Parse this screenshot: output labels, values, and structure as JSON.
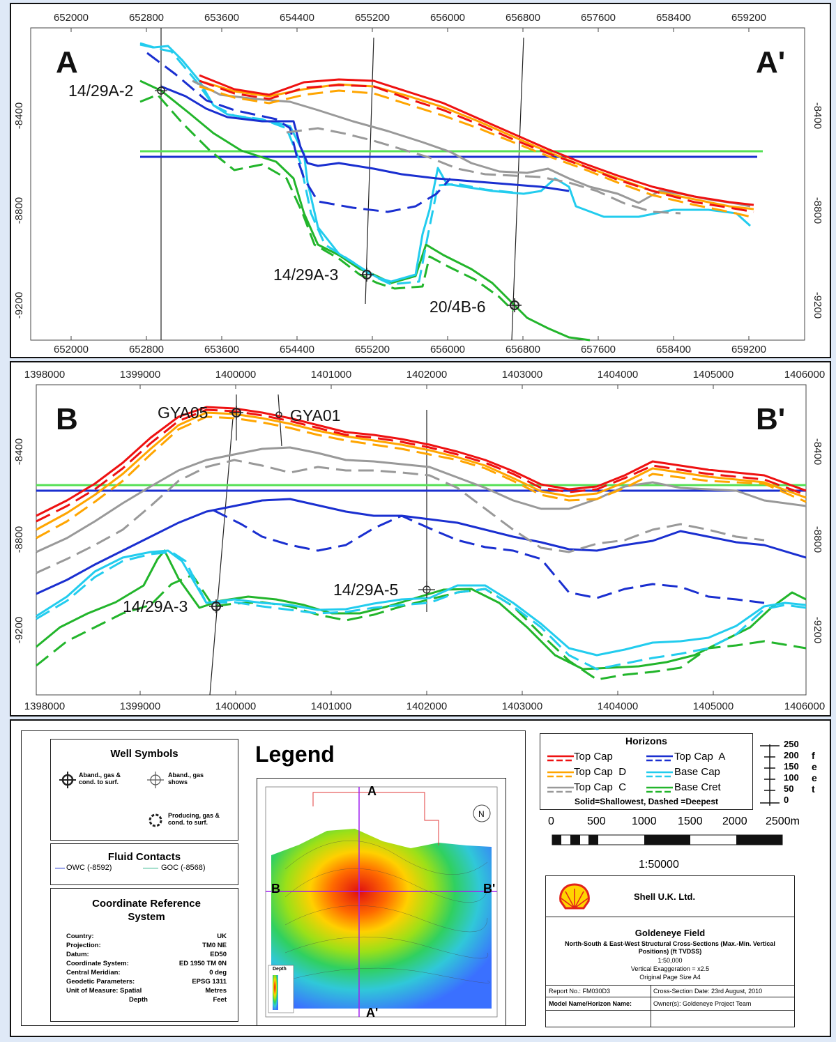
{
  "section_a": {
    "start_label": "A",
    "end_label": "A'",
    "x_ticks": [
      "652000",
      "652800",
      "653600",
      "654400",
      "655200",
      "656000",
      "656800",
      "657600",
      "658400",
      "659200"
    ],
    "y_ticks": [
      "-8400",
      "-8800",
      "-9200"
    ],
    "wells": [
      {
        "name": "14/29A-2"
      },
      {
        "name": "14/29A-3"
      },
      {
        "name": "20/4B-6"
      }
    ]
  },
  "section_b": {
    "start_label": "B",
    "end_label": "B'",
    "x_ticks": [
      "1398000",
      "1399000",
      "1400000",
      "1401000",
      "1402000",
      "1403000",
      "1404000",
      "1405000",
      "1406000"
    ],
    "y_ticks": [
      "-8400",
      "-8800",
      "-9200"
    ],
    "wells": [
      {
        "name": "GYA05"
      },
      {
        "name": "GYA01"
      },
      {
        "name": "14/29A-5"
      },
      {
        "name": "14/29A-3"
      }
    ]
  },
  "colors": {
    "top_cap": "#ee1111",
    "top_cap_d": "#ffa500",
    "top_cap_c": "#999999",
    "top_cap_a": "#1a2fd0",
    "base_cap": "#22ccee",
    "base_cret": "#22b52b",
    "goc": "#55e055",
    "owc": "#1a2fd0"
  },
  "legend": {
    "title": "Legend",
    "well_symbols": {
      "title": "Well Symbols",
      "items": [
        "Aband., gas & cond. to surf.",
        "Aband., gas shows",
        "Producing, gas & cond. to surf."
      ]
    },
    "fluid_contacts": {
      "title": "Fluid Contacts",
      "owc": "OWC (-8592)",
      "goc": "GOC (-8568)"
    },
    "crs": {
      "title": "Coordinate Reference System",
      "rows": [
        {
          "k": "Country:",
          "v": "UK"
        },
        {
          "k": "Projection:",
          "v": "TM0 NE"
        },
        {
          "k": "Datum:",
          "v": "ED50"
        },
        {
          "k": "Coordinate System:",
          "v": "ED 1950 TM 0N"
        },
        {
          "k": "Central Meridian:",
          "v": "0 deg"
        },
        {
          "k": "Geodetic Parameters:",
          "v": "EPSG 1311"
        },
        {
          "k": "Unit of Measure: Spatial",
          "v": "Metres"
        },
        {
          "k": "Depth",
          "v": "Feet"
        }
      ]
    },
    "horizons": {
      "title": "Horizons",
      "left": [
        "Top Cap",
        "Top Cap  D",
        "Top Cap  C"
      ],
      "right": [
        "Top Cap  A",
        "Base Cap",
        "Base Cret"
      ],
      "note": "Solid=Shallowest, Dashed =Deepest"
    },
    "vertical_scale": {
      "ticks": [
        "250",
        "200",
        "150",
        "100",
        "50",
        "0"
      ],
      "unit_letters": [
        "f",
        "e",
        "e",
        "t"
      ]
    },
    "bar_scale": {
      "labels": [
        "0",
        "500",
        "1000",
        "1500",
        "2000",
        "2500m"
      ],
      "ratio": "1:50000"
    },
    "map": {
      "label_a": "A",
      "label_a2": "A'",
      "label_b": "B",
      "label_b2": "B'",
      "depth_title": "Depth"
    },
    "title_block": {
      "company": "Shell U.K. Ltd.",
      "field": "Goldeneye Field",
      "subtitle": "North-South & East-West Structural Cross-Sections (Max.-Min. Vertical Positions) (ft TVDSS)",
      "scale": "1:50,000",
      "exaggeration": "Vertical Exaggeration = x2.5",
      "page_size": "Original Page Size A4",
      "report_no": "Report No.: FM030D3",
      "date": "Cross-Section Date: 23rd August, 2010",
      "model": "Model Name/Horizon Name:",
      "owner": "Owner(s): Goldeneye Project Team"
    }
  }
}
